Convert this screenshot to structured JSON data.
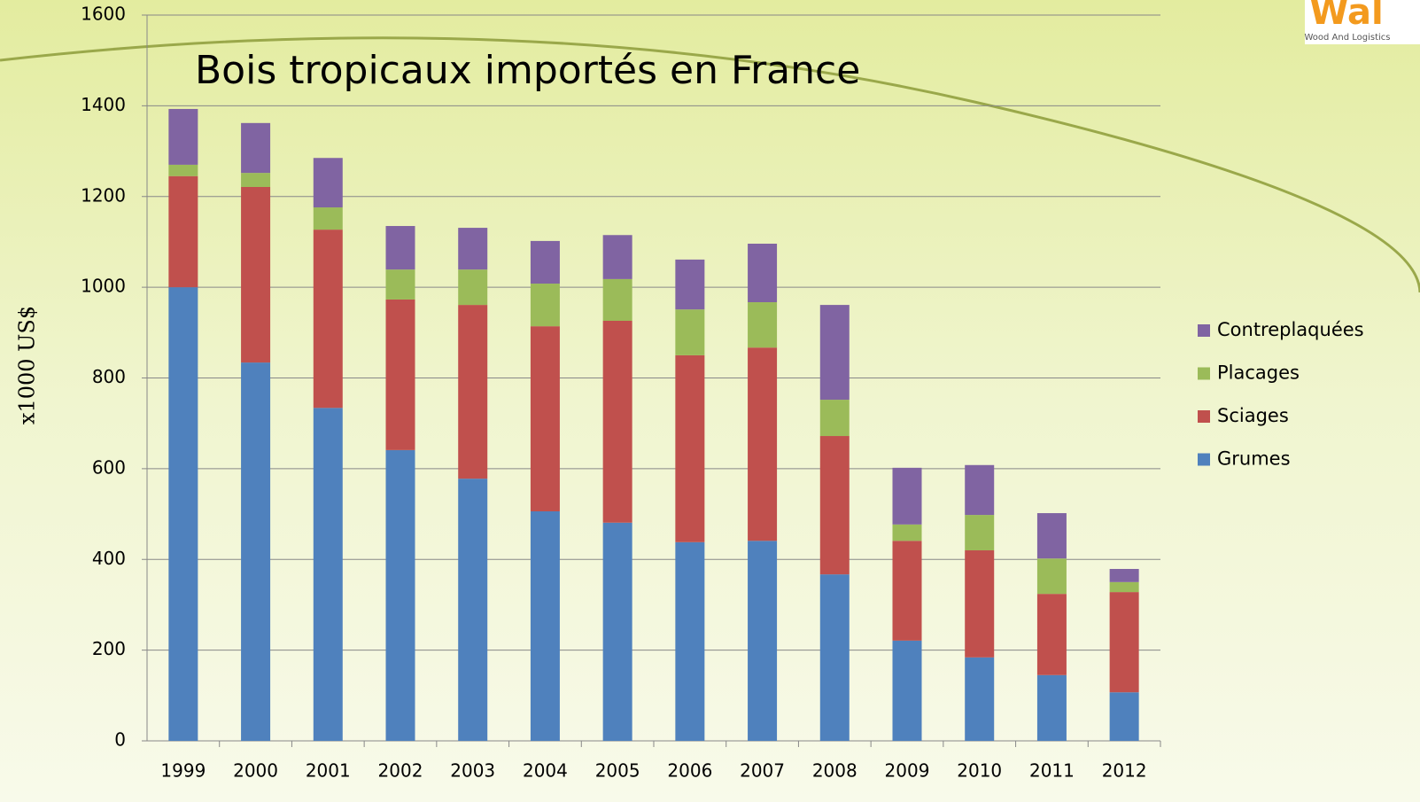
{
  "logo": {
    "text": "Wal",
    "subtitle": "Wood And Logistics"
  },
  "chart_data": {
    "type": "stacked_bar",
    "title": "Bois tropicaux importés en France",
    "y_label": "x1000 US$",
    "categories": [
      "1999",
      "2000",
      "2001",
      "2002",
      "2003",
      "2004",
      "2005",
      "2006",
      "2007",
      "2008",
      "2009",
      "2010",
      "2011",
      "2012"
    ],
    "series": [
      {
        "name": "Grumes",
        "color": "#4f81bd",
        "values": [
          1000,
          834,
          734,
          641,
          578,
          506,
          481,
          438,
          441,
          367,
          221,
          184,
          145,
          107
        ]
      },
      {
        "name": "Sciages",
        "color": "#c0504d",
        "values": [
          245,
          387,
          393,
          332,
          383,
          408,
          445,
          412,
          426,
          305,
          220,
          236,
          179,
          221
        ]
      },
      {
        "name": "Placages",
        "color": "#9bbb59",
        "values": [
          25,
          31,
          49,
          66,
          78,
          94,
          92,
          101,
          100,
          80,
          36,
          78,
          78,
          22
        ]
      },
      {
        "name": "Contreplaquées",
        "color": "#8064a2",
        "values": [
          123,
          110,
          109,
          96,
          92,
          94,
          97,
          110,
          129,
          209,
          125,
          110,
          100,
          29
        ]
      }
    ],
    "ylim": [
      0,
      1600
    ],
    "yticks": [
      0,
      200,
      400,
      600,
      800,
      1000,
      1200,
      1400,
      1600
    ],
    "grid": true,
    "legend": "right"
  }
}
